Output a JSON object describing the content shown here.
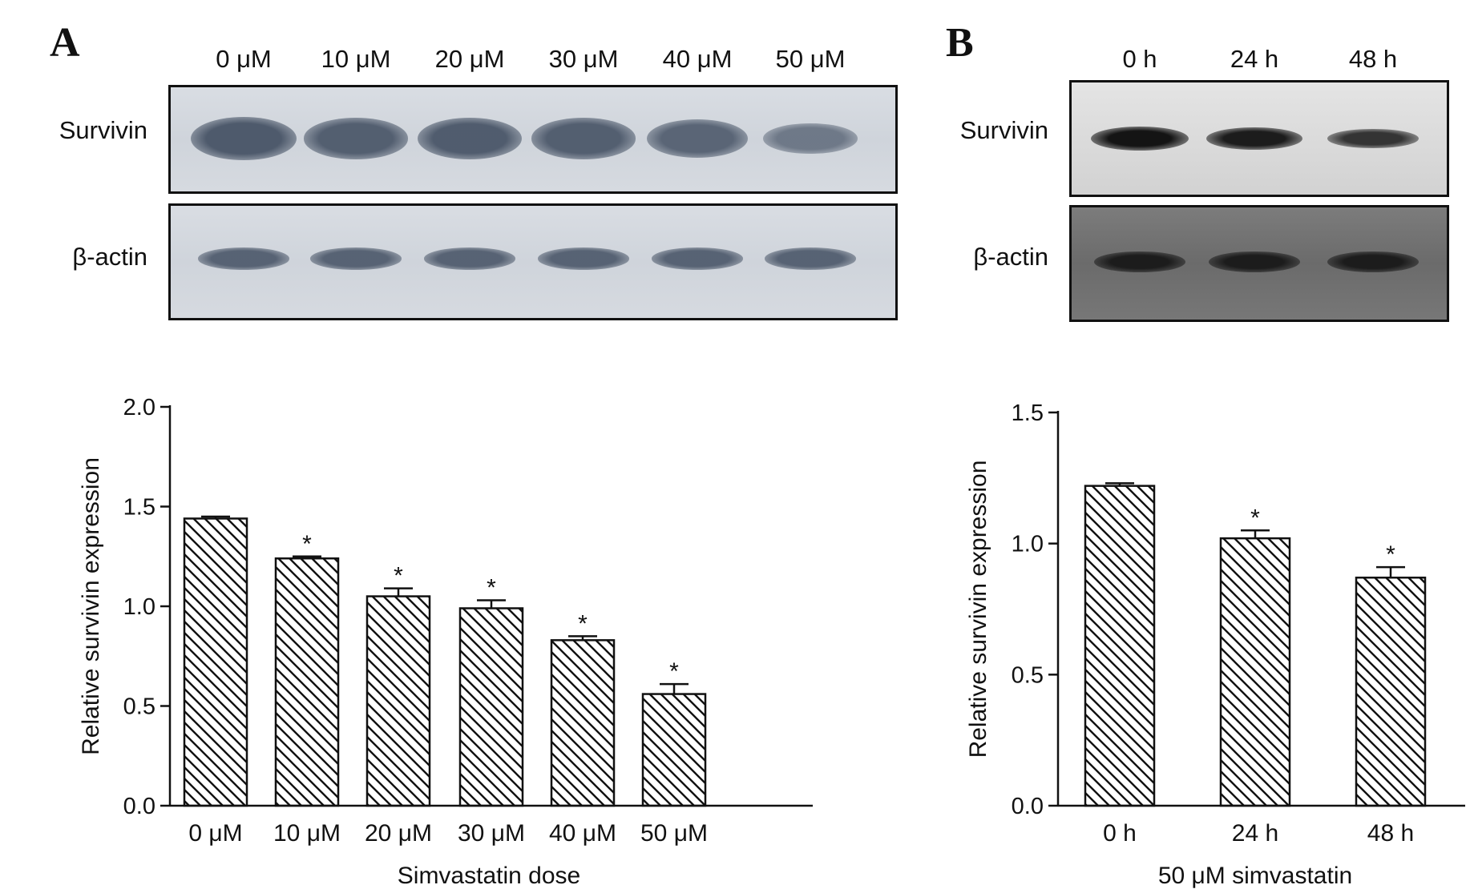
{
  "panels": {
    "a": {
      "letter": "A",
      "lanes": [
        "0 μM",
        "10 μM",
        "20 μM",
        "30 μM",
        "40 μM",
        "50 μM"
      ],
      "rows": {
        "survivin": "Survivin",
        "actin": "β-actin"
      },
      "survivin_band_intensity": [
        1.0,
        0.9,
        0.95,
        0.9,
        0.8,
        0.45
      ],
      "actin_band_intensity": [
        0.85,
        0.85,
        0.85,
        0.85,
        0.85,
        0.85
      ]
    },
    "b": {
      "letter": "B",
      "lanes": [
        "0 h",
        "24 h",
        "48 h"
      ],
      "rows": {
        "survivin": "Survivin",
        "actin": "β-actin"
      },
      "survivin_band_intensity": [
        1.0,
        0.9,
        0.65
      ],
      "actin_band_intensity": [
        0.8,
        0.8,
        0.8
      ]
    }
  },
  "chart_data": [
    {
      "type": "bar",
      "categories": [
        "0 μM",
        "10 μM",
        "20 μM",
        "30 μM",
        "40 μM",
        "50 μM"
      ],
      "values": [
        1.44,
        1.24,
        1.05,
        0.99,
        0.83,
        0.56
      ],
      "errors": [
        0.01,
        0.01,
        0.04,
        0.04,
        0.02,
        0.05
      ],
      "significance": [
        "",
        "*",
        "*",
        "*",
        "*",
        "*"
      ],
      "xlabel": "Simvastatin dose",
      "ylabel": "Relative survivin expression",
      "ylim": [
        0,
        2.0
      ],
      "yticks": [
        "0.0",
        "0.5",
        "1.0",
        "1.5",
        "2.0"
      ],
      "fill": "diagonal-hatch"
    },
    {
      "type": "bar",
      "categories": [
        "0 h",
        "24 h",
        "48 h"
      ],
      "values": [
        1.22,
        1.02,
        0.87
      ],
      "errors": [
        0.01,
        0.03,
        0.04
      ],
      "significance": [
        "",
        "*",
        "*"
      ],
      "xlabel": "50 μM simvastatin",
      "ylabel": "Relative survivin expression",
      "ylim": [
        0,
        1.5
      ],
      "yticks": [
        "0.0",
        "0.5",
        "1.0",
        "1.5"
      ],
      "fill": "diagonal-hatch"
    }
  ]
}
